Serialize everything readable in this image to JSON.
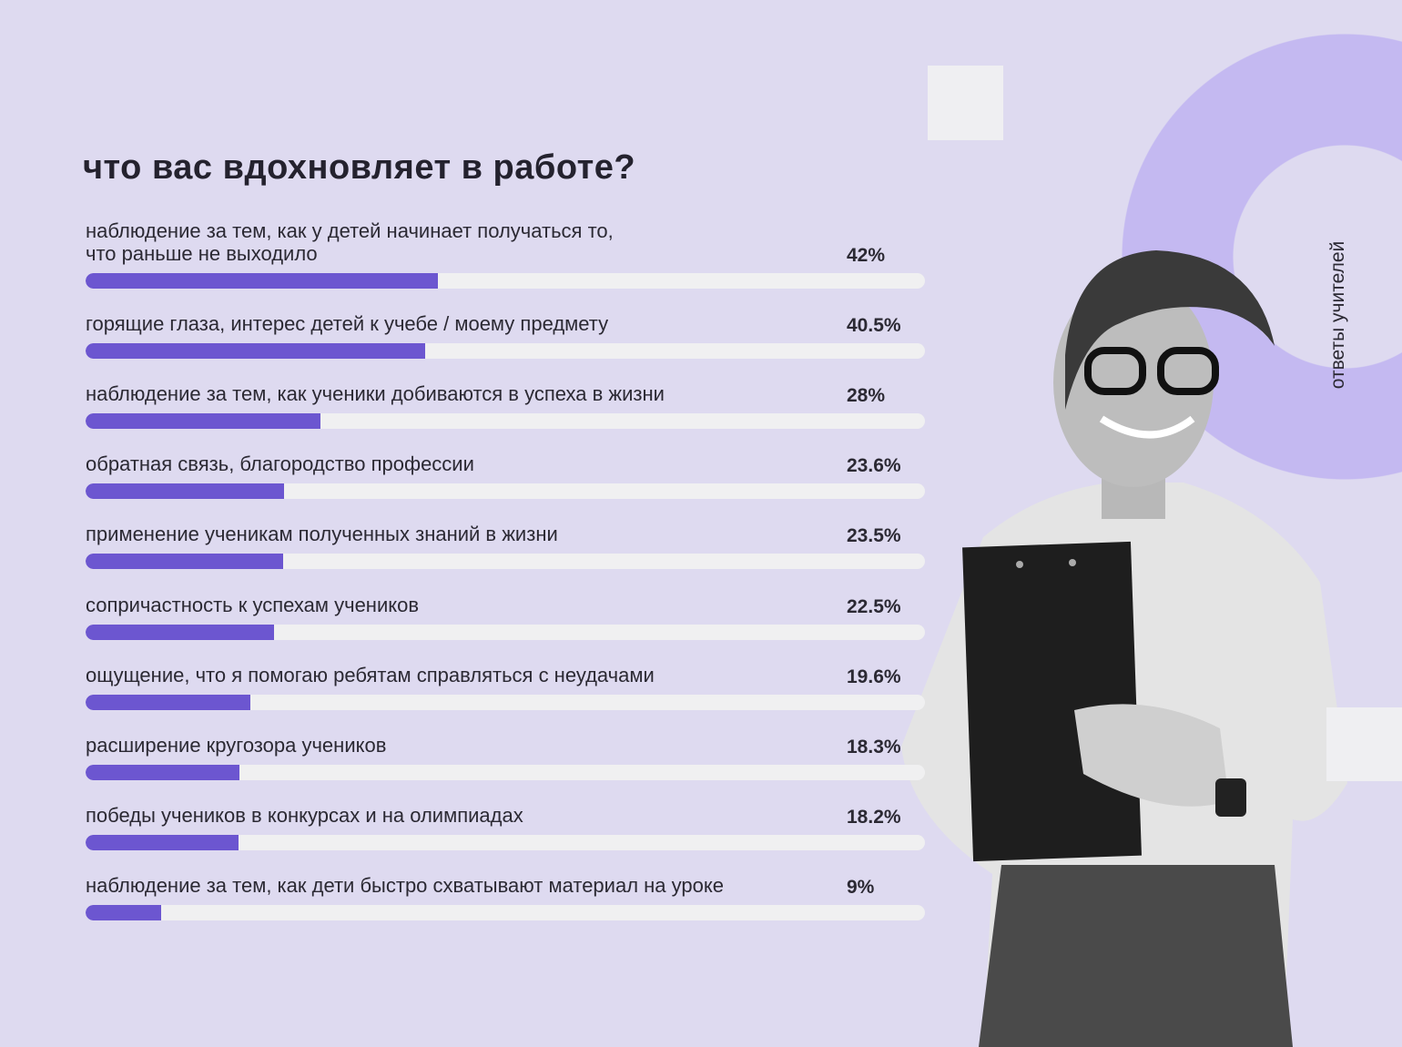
{
  "side_label": "ответы учителей",
  "colors": {
    "background": "#dedaf0",
    "bar": "#6c56d0",
    "track": "#f0f0f1",
    "accent_circle": "#c4b9f1"
  },
  "chart_data": {
    "type": "bar",
    "orientation": "horizontal",
    "title": "что вас вдохновляет в работе?",
    "xlim": [
      0,
      100
    ],
    "unit": "%",
    "categories": [
      "наблюдение за тем, как у детей начинает получаться то,\nчто раньше не выходило",
      "горящие глаза, интерес детей к учебе / моему предмету",
      "наблюдение за тем, как ученики добиваются в успеха в жизни",
      "обратная связь, благородство профессии",
      "применение ученикам полученных знаний в жизни",
      "сопричастность к успехам учеников",
      "ощущение, что я помогаю ребятам справляться с неудачами",
      "расширение кругозора учеников",
      "победы учеников в конкурсах и на олимпиадах",
      "наблюдение за тем, как дети быстро схватывают материал на уроке"
    ],
    "values": [
      42,
      40.5,
      28,
      23.6,
      23.5,
      22.5,
      19.6,
      18.3,
      18.2,
      9
    ],
    "value_labels": [
      "42%",
      "40.5%",
      "28%",
      "23.6%",
      "23.5%",
      "22.5%",
      "19.6%",
      "18.3%",
      "18.2%",
      "9%"
    ]
  }
}
